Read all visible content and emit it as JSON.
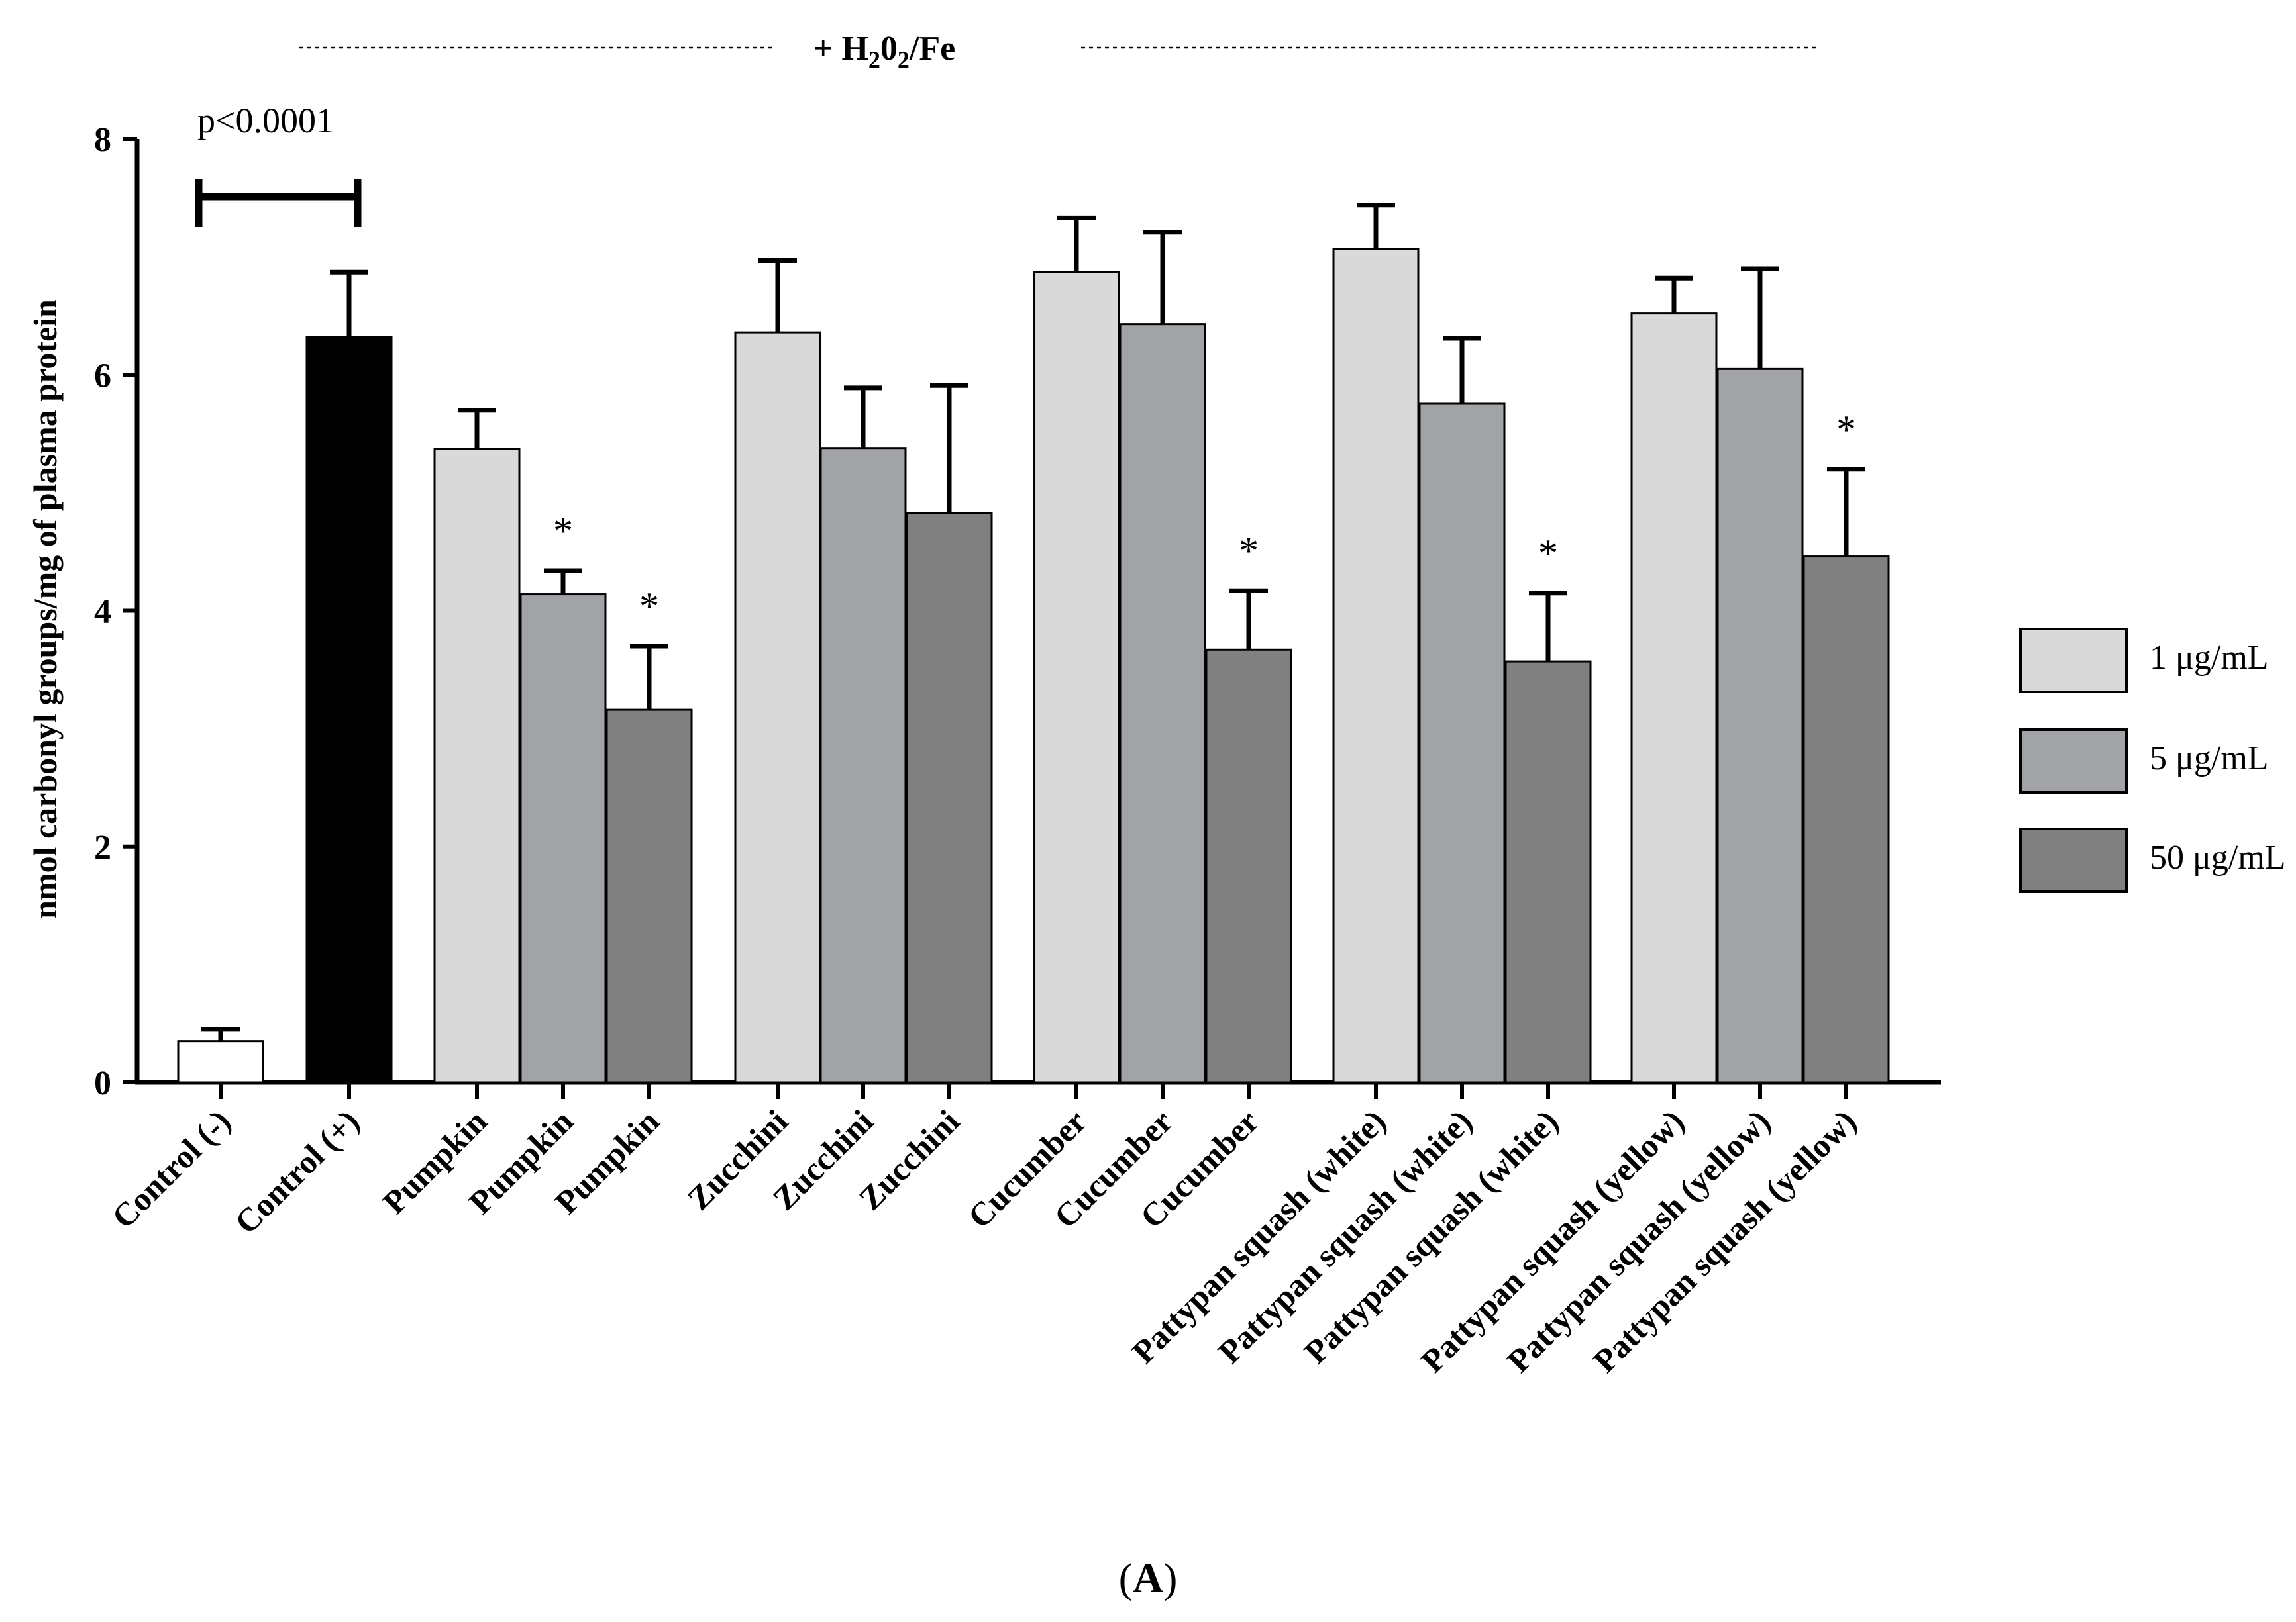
{
  "chart_data": {
    "type": "bar",
    "panel_label": "A",
    "treatment_label": "+ H₂0₂/Fe",
    "ylabel": "nmol carbonyl groups/mg of plasma protein",
    "ylim": [
      0,
      8
    ],
    "yticks": [
      0,
      2,
      4,
      6,
      8
    ],
    "significance": {
      "text": "p<0.0001",
      "between": [
        "Control (-)",
        "Control (+)"
      ]
    },
    "legend": [
      {
        "label": "1 μg/mL",
        "color": "#d9d9d9"
      },
      {
        "label": "5 μg/mL",
        "color": "#a2a3a7"
      },
      {
        "label": "50 μg/mL",
        "color": "#808080"
      }
    ],
    "bars": [
      {
        "category": "Control (-)",
        "series": "control",
        "value": 0.35,
        "error": 0.1,
        "color": "#ffffff",
        "star": ""
      },
      {
        "category": "Control (+)",
        "series": "control",
        "value": 6.32,
        "error": 0.55,
        "color": "#000000",
        "star": ""
      },
      {
        "category": "Pumpkin",
        "series": "1 μg/mL",
        "value": 5.37,
        "error": 0.33,
        "color": "#d9d9d9",
        "star": ""
      },
      {
        "category": "Pumpkin",
        "series": "5 μg/mL",
        "value": 4.14,
        "error": 0.2,
        "color": "#a2a3a7",
        "star": "*"
      },
      {
        "category": "Pumpkin",
        "series": "50 μg/mL",
        "value": 3.16,
        "error": 0.54,
        "color": "#808080",
        "star": "*"
      },
      {
        "category": "Zucchini",
        "series": "1 μg/mL",
        "value": 6.36,
        "error": 0.61,
        "color": "#d9d9d9",
        "star": ""
      },
      {
        "category": "Zucchini",
        "series": "5 μg/mL",
        "value": 5.38,
        "error": 0.51,
        "color": "#a2a3a7",
        "star": ""
      },
      {
        "category": "Zucchini",
        "series": "50 μg/mL",
        "value": 4.83,
        "error": 1.08,
        "color": "#808080",
        "star": ""
      },
      {
        "category": "Cucumber",
        "series": "1 μg/mL",
        "value": 6.87,
        "error": 0.46,
        "color": "#d9d9d9",
        "star": ""
      },
      {
        "category": "Cucumber",
        "series": "5 μg/mL",
        "value": 6.43,
        "error": 0.78,
        "color": "#a2a3a7",
        "star": ""
      },
      {
        "category": "Cucumber",
        "series": "50 μg/mL",
        "value": 3.67,
        "error": 0.5,
        "color": "#808080",
        "star": "*"
      },
      {
        "category": "Pattypan squash (white)",
        "series": "1 μg/mL",
        "value": 7.07,
        "error": 0.37,
        "color": "#d9d9d9",
        "star": ""
      },
      {
        "category": "Pattypan squash (white)",
        "series": "5 μg/mL",
        "value": 5.76,
        "error": 0.55,
        "color": "#a2a3a7",
        "star": ""
      },
      {
        "category": "Pattypan squash (white)",
        "series": "50 μg/mL",
        "value": 3.57,
        "error": 0.58,
        "color": "#808080",
        "star": "*"
      },
      {
        "category": "Pattypan squash (yellow)",
        "series": "1 μg/mL",
        "value": 6.52,
        "error": 0.3,
        "color": "#d9d9d9",
        "star": ""
      },
      {
        "category": "Pattypan squash (yellow)",
        "series": "5 μg/mL",
        "value": 6.05,
        "error": 0.85,
        "color": "#a2a3a7",
        "star": ""
      },
      {
        "category": "Pattypan squash (yellow)",
        "series": "50 μg/mL",
        "value": 4.46,
        "error": 0.74,
        "color": "#808080",
        "star": "*"
      }
    ]
  }
}
